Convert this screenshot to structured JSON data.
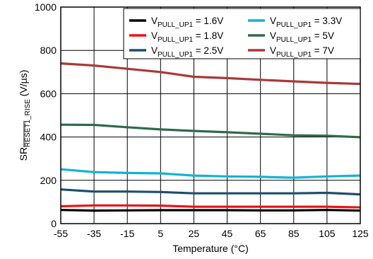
{
  "chart_data": {
    "type": "line",
    "xlabel": "Temperature (°C)",
    "ylabel_main": "SR",
    "ylabel_sub": "RESET1_RISE",
    "ylabel_unit": " (V/µs)",
    "xlim": [
      -55,
      125
    ],
    "ylim": [
      0,
      1000
    ],
    "xticks": [
      -55,
      -35,
      -15,
      5,
      25,
      45,
      65,
      85,
      105,
      125
    ],
    "yticks": [
      0,
      200,
      400,
      600,
      800,
      1000
    ],
    "grid": true,
    "legend_position": "top-right",
    "x": [
      -55,
      -35,
      -15,
      5,
      25,
      45,
      65,
      85,
      105,
      125
    ],
    "series": [
      {
        "name": "V",
        "sub": "PULL_UP1",
        "suffix": " = 1.6V",
        "color": "#000000",
        "values": [
          63,
          60,
          61,
          62,
          62,
          62,
          61,
          61,
          63,
          60
        ]
      },
      {
        "name": "V",
        "sub": "PULL_UP1",
        "suffix": " = 1.8V",
        "color": "#e8141b",
        "values": [
          80,
          84,
          84,
          83,
          78,
          78,
          78,
          78,
          78,
          75
        ]
      },
      {
        "name": "V",
        "sub": "PULL_UP1",
        "suffix": " = 2.5V",
        "color": "#1f4e6b",
        "values": [
          158,
          148,
          148,
          146,
          140,
          140,
          140,
          140,
          142,
          135
        ]
      },
      {
        "name": "V",
        "sub": "PULL_UP1",
        "suffix": " = 3.3V",
        "color": "#14b3d1",
        "values": [
          251,
          238,
          234,
          232,
          222,
          218,
          216,
          212,
          218,
          222
        ]
      },
      {
        "name": "V",
        "sub": "PULL_UP1",
        "suffix": " = 5V",
        "color": "#2f6b4a",
        "values": [
          457,
          456,
          445,
          435,
          428,
          422,
          415,
          408,
          406,
          399
        ]
      },
      {
        "name": "V",
        "sub": "PULL_UP1",
        "suffix": " = 7V",
        "color": "#a83a3a",
        "values": [
          740,
          730,
          715,
          700,
          678,
          672,
          664,
          657,
          650,
          645
        ]
      }
    ]
  }
}
